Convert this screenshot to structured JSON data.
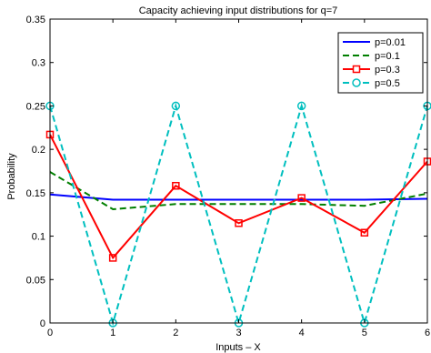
{
  "chart_data": {
    "type": "line",
    "title": "Capacity achieving input distributions for q=7",
    "xlabel": "Inputs – X",
    "ylabel": "Probability",
    "x": [
      0,
      1,
      2,
      3,
      4,
      5,
      6
    ],
    "xlim": [
      0,
      6
    ],
    "ylim": [
      0,
      0.35
    ],
    "xticks": [
      0,
      1,
      2,
      3,
      4,
      5,
      6
    ],
    "yticks": [
      0,
      0.05,
      0.1,
      0.15,
      0.2,
      0.25,
      0.3,
      0.35
    ],
    "ytick_labels": [
      "0",
      "0.05",
      "0.1",
      "0.15",
      "0.2",
      "0.25",
      "0.3",
      "0.35"
    ],
    "grid": false,
    "legend_position": "top-right",
    "series": [
      {
        "name": "p=0.01",
        "color": "#0000ff",
        "dash": "solid",
        "marker": "none",
        "values": [
          0.148,
          0.142,
          0.142,
          0.142,
          0.142,
          0.142,
          0.143
        ]
      },
      {
        "name": "p=0.1",
        "color": "#007f00",
        "dash": "dashed",
        "marker": "none",
        "values": [
          0.174,
          0.131,
          0.137,
          0.137,
          0.137,
          0.135,
          0.149
        ]
      },
      {
        "name": "p=0.3",
        "color": "#ff0000",
        "dash": "solid",
        "marker": "square",
        "values": [
          0.217,
          0.075,
          0.158,
          0.115,
          0.144,
          0.104,
          0.186
        ]
      },
      {
        "name": "p=0.5",
        "color": "#00bfbf",
        "dash": "dashed",
        "marker": "circle",
        "values": [
          0.25,
          0,
          0.25,
          0,
          0.25,
          0,
          0.25
        ]
      }
    ]
  }
}
